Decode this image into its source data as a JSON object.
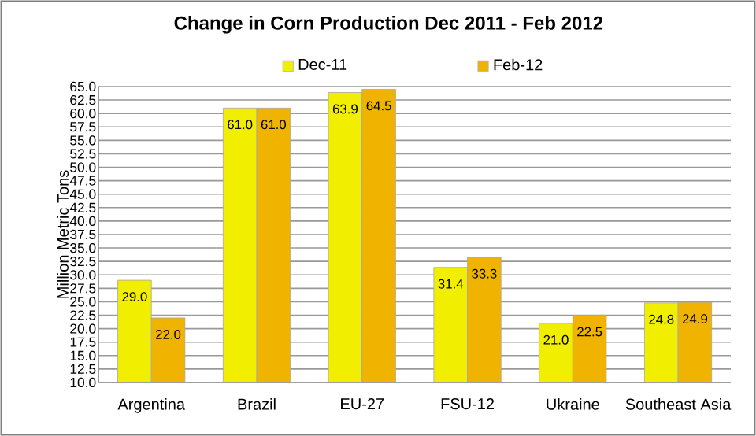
{
  "chart_data": {
    "type": "bar",
    "title": "Change in Corn Production Dec 2011 - Feb 2012",
    "ylabel": "Million Metric Tons",
    "categories": [
      "Argentina",
      "Brazil",
      "EU-27",
      "FSU-12",
      "Ukraine",
      "Southeast Asia"
    ],
    "series": [
      {
        "name": "Dec-11",
        "color": "#f2ee00",
        "values": [
          29.0,
          61.0,
          63.9,
          31.4,
          21.0,
          24.8
        ],
        "value_labels": [
          "29.0",
          "61.0",
          "63.9",
          "31.4",
          "21.0",
          "24.8"
        ]
      },
      {
        "name": "Feb-12",
        "color": "#f0b400",
        "values": [
          22.0,
          61.0,
          64.5,
          33.3,
          22.5,
          24.9
        ],
        "value_labels": [
          "22.0",
          "61.0",
          "64.5",
          "33.3",
          "22.5",
          "24.9"
        ]
      }
    ],
    "ylim": [
      10,
      65
    ],
    "yticks": [
      {
        "value": 10,
        "label": "10.0"
      },
      {
        "value": 12.5,
        "label": "12.5"
      },
      {
        "value": 15,
        "label": "15.0"
      },
      {
        "value": 17.5,
        "label": "17.5"
      },
      {
        "value": 20,
        "label": "20.0"
      },
      {
        "value": 22.5,
        "label": "22.5"
      },
      {
        "value": 25,
        "label": "25.0"
      },
      {
        "value": 27.5,
        "label": "27.5"
      },
      {
        "value": 30,
        "label": "30.0"
      },
      {
        "value": 32.5,
        "label": "32.5"
      },
      {
        "value": 35,
        "label": "35.0"
      },
      {
        "value": 37.5,
        "label": "37.5"
      },
      {
        "value": 40,
        "label": "40.0"
      },
      {
        "value": 42.5,
        "label": "42.5"
      },
      {
        "value": 45,
        "label": "45.0"
      },
      {
        "value": 47.5,
        "label": "47.5"
      },
      {
        "value": 50,
        "label": "50.0"
      },
      {
        "value": 52.5,
        "label": "52.5"
      },
      {
        "value": 55,
        "label": "55.0"
      },
      {
        "value": 57.5,
        "label": "57.5"
      },
      {
        "value": 60,
        "label": "60.0"
      },
      {
        "value": 62.5,
        "label": "62.5"
      },
      {
        "value": 65,
        "label": "65.0"
      }
    ],
    "grid": "y",
    "legend": "top"
  }
}
